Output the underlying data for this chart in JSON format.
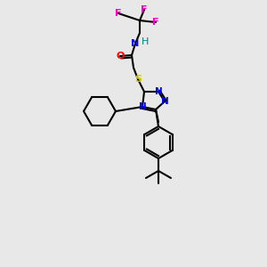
{
  "background_color": "#e8e8e8",
  "atom_colors": {
    "F": "#ff00cc",
    "N": "#0000ff",
    "O": "#ff0000",
    "S": "#cccc00",
    "H": "#008080",
    "C": "#000000"
  },
  "figsize": [
    3.0,
    3.0
  ],
  "dpi": 100
}
